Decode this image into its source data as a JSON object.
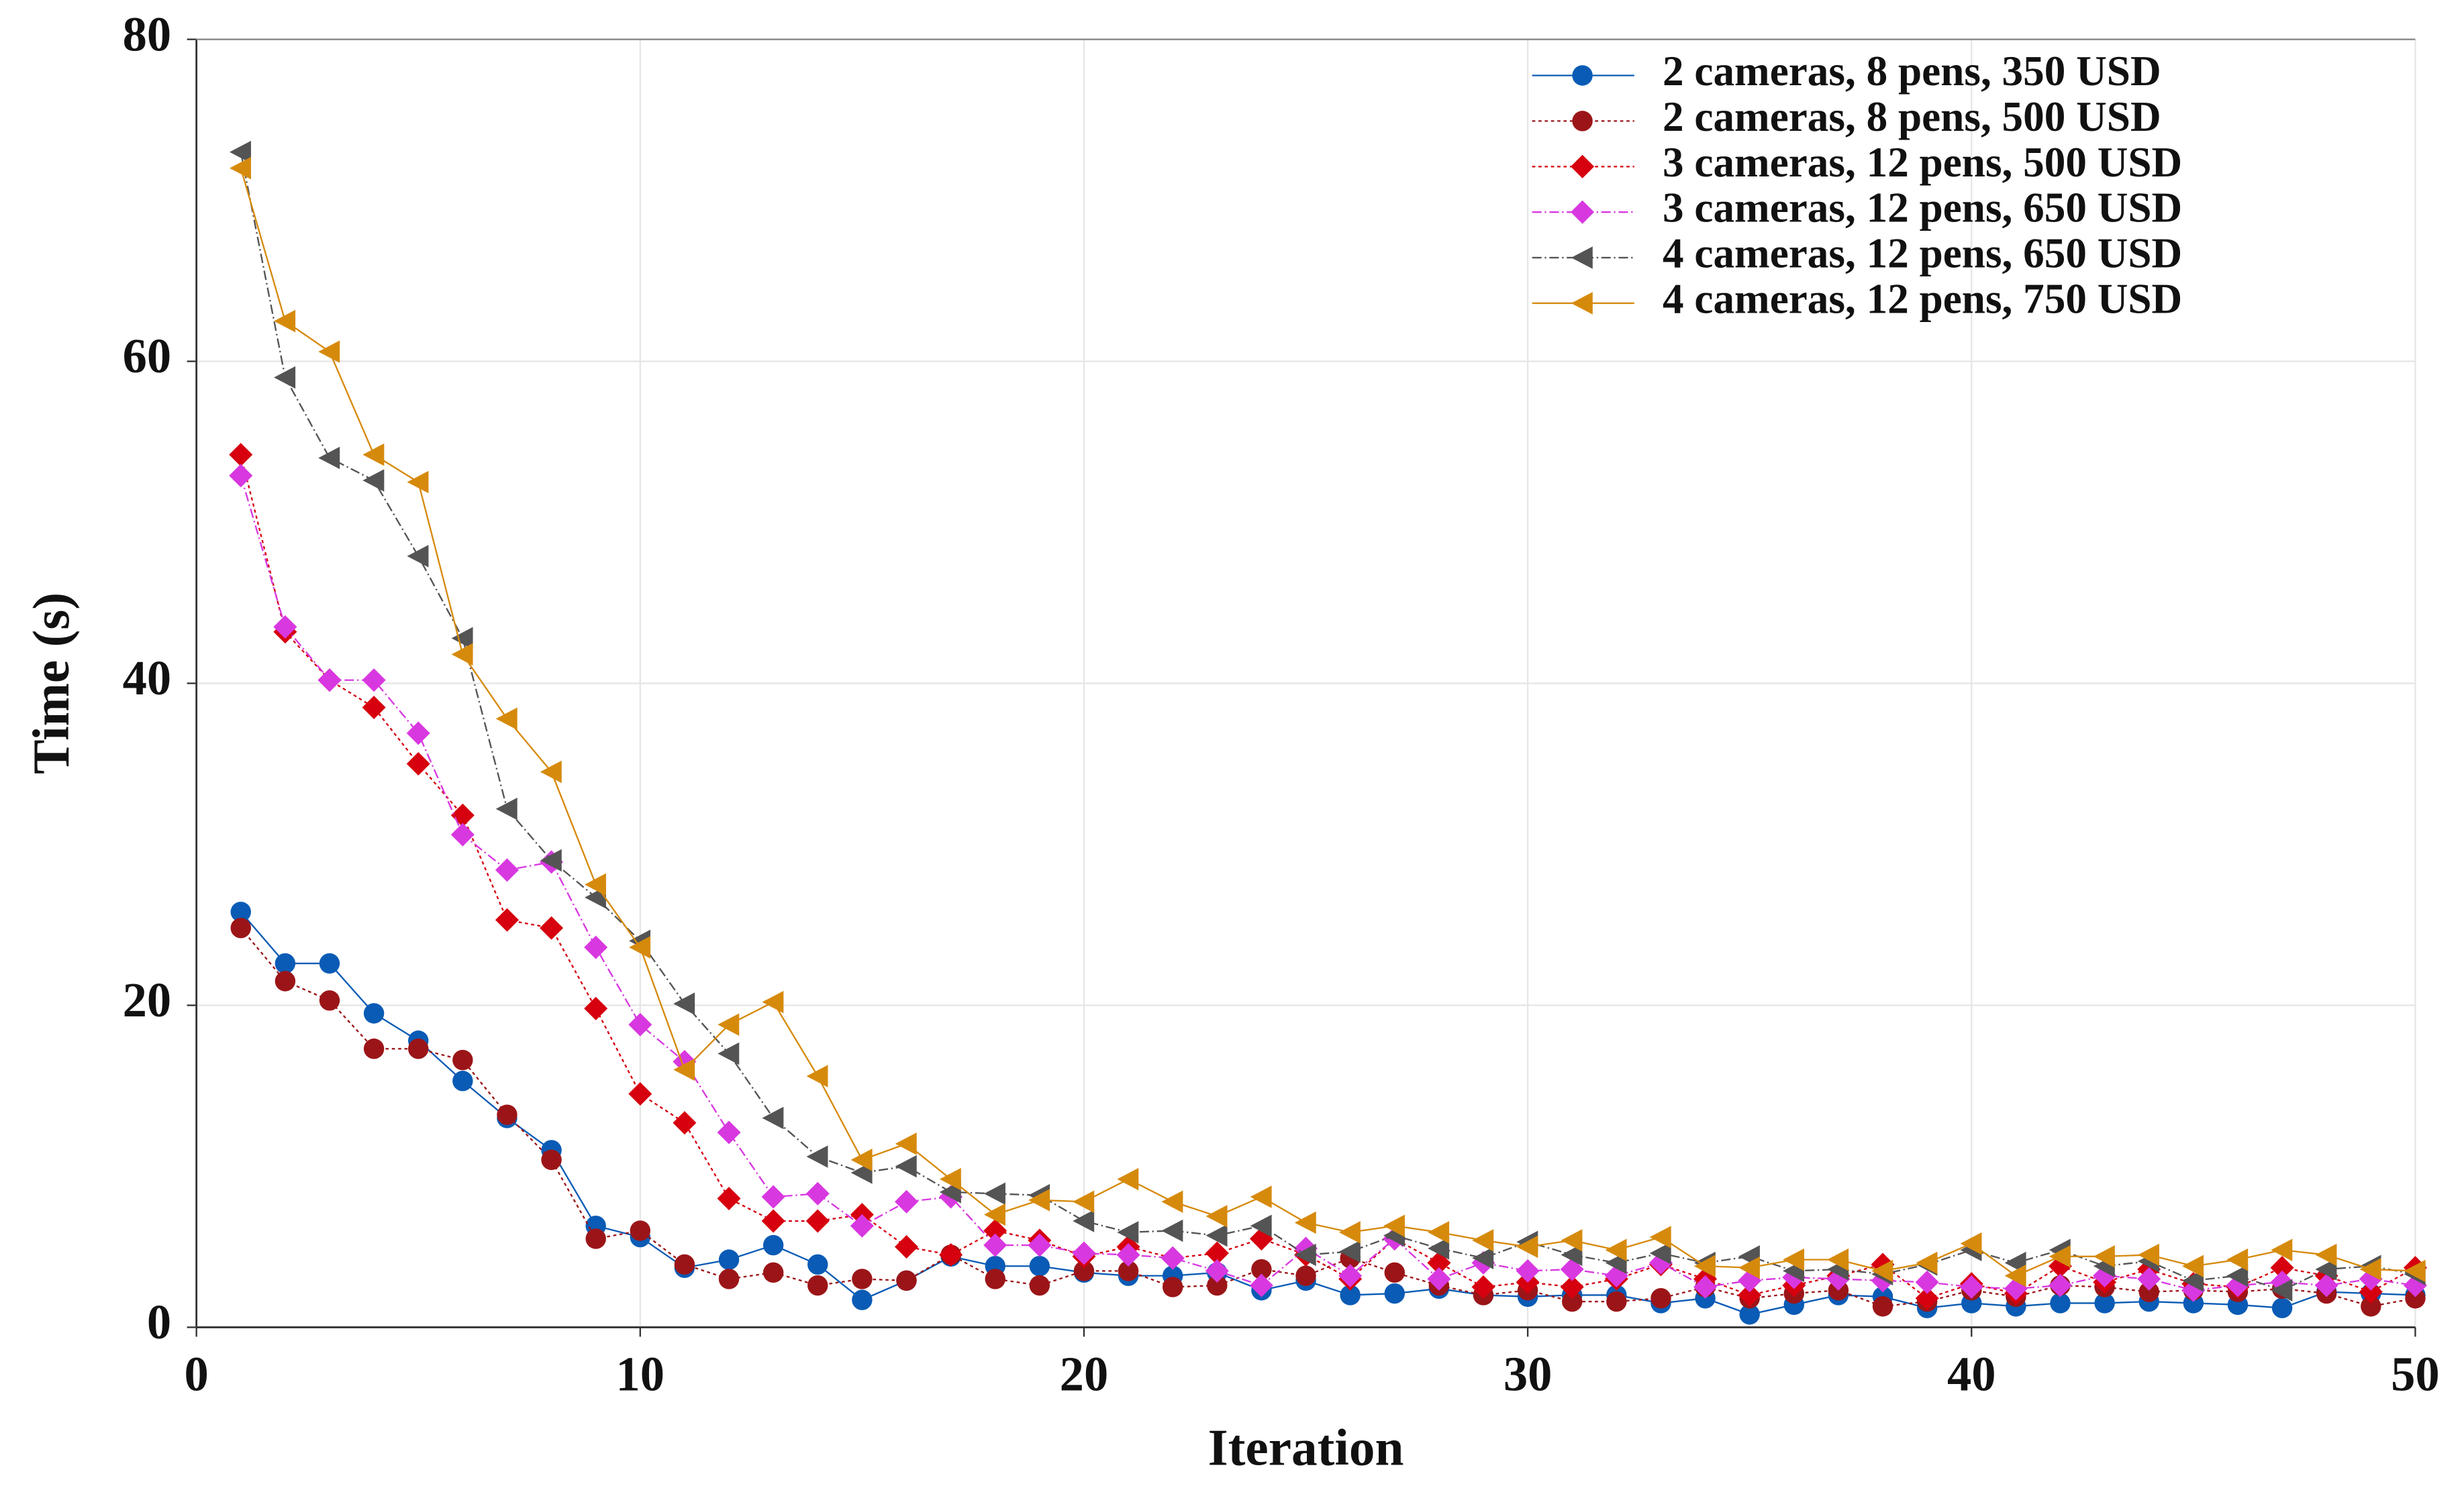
{
  "chart_data": {
    "type": "line",
    "xlabel": "Iteration",
    "ylabel": "Time (s)",
    "xlim": [
      0,
      50
    ],
    "xticks": [
      0,
      10,
      20,
      30,
      40,
      50
    ],
    "ylim": [
      0,
      80
    ],
    "yticks": [
      0,
      20,
      40,
      60,
      80
    ],
    "grid": true,
    "legend": "upper right",
    "x": [
      1,
      2,
      3,
      4,
      5,
      6,
      7,
      8,
      9,
      10,
      11,
      12,
      13,
      14,
      15,
      16,
      17,
      18,
      19,
      20,
      21,
      22,
      23,
      24,
      25,
      26,
      27,
      28,
      29,
      30,
      31,
      32,
      33,
      34,
      35,
      36,
      37,
      38,
      39,
      40,
      41,
      42,
      43,
      44,
      45,
      46,
      47,
      48,
      49,
      50
    ],
    "series": [
      {
        "name": "2 cameras, 8 pens, 350 USD",
        "color": "#0a5bb5",
        "marker": "circle",
        "linestyle": "solid",
        "values": [
          25.8,
          22.6,
          22.6,
          19.5,
          17.8,
          15.3,
          13,
          11,
          6.3,
          5.6,
          3.7,
          4.2,
          5.1,
          3.9,
          1.7,
          2.9,
          4.4,
          3.8,
          3.8,
          3.4,
          3.2,
          3.2,
          3.4,
          2.3,
          2.9,
          2.0,
          2.1,
          2.4,
          2.0,
          1.9,
          2.0,
          2.0,
          1.5,
          1.8,
          0.8,
          1.4,
          2.0,
          1.9,
          1.2,
          1.5,
          1.3,
          1.5,
          1.5,
          1.6,
          1.5,
          1.4,
          1.2,
          2.2,
          2.1,
          2.0
        ]
      },
      {
        "name": "2 cameras, 8 pens, 500 USD",
        "color": "#9b1518",
        "marker": "circle",
        "linestyle": "dotted",
        "values": [
          24.8,
          21.5,
          20.3,
          17.3,
          17.3,
          16.6,
          13.2,
          10.4,
          5.5,
          6.0,
          3.9,
          3.0,
          3.4,
          2.6,
          3.0,
          2.9,
          4.5,
          3.0,
          2.6,
          3.5,
          3.5,
          2.5,
          2.6,
          3.6,
          3.2,
          4.3,
          3.4,
          2.6,
          2.0,
          2.3,
          1.6,
          1.6,
          1.8,
          2.5,
          1.8,
          2.1,
          2.3,
          1.3,
          1.6,
          2.3,
          1.9,
          2.6,
          2.5,
          2.2,
          2.3,
          2.2,
          2.4,
          2.1,
          1.3,
          1.8
        ]
      },
      {
        "name": "3 cameras, 12 pens, 500 USD",
        "color": "#d6000f",
        "marker": "diamond",
        "linestyle": "dotted",
        "values": [
          54.2,
          43.2,
          40.2,
          38.5,
          35.0,
          31.8,
          25.3,
          24.8,
          19.8,
          14.5,
          12.7,
          8.0,
          6.6,
          6.6,
          7.0,
          5.0,
          4.5,
          6.0,
          5.4,
          4.4,
          5.0,
          4.3,
          4.6,
          5.5,
          4.5,
          3.0,
          5.5,
          4.0,
          2.5,
          2.8,
          2.5,
          3.0,
          3.9,
          3.0,
          2.0,
          2.6,
          3.2,
          3.9,
          1.8,
          2.7,
          2.1,
          3.8,
          2.8,
          3.6,
          2.7,
          2.5,
          3.7,
          3.2,
          2.2,
          3.7
        ]
      },
      {
        "name": "3 cameras, 12 pens, 650 USD",
        "color": "#d838e0",
        "marker": "diamond",
        "linestyle": "dashdot",
        "values": [
          52.9,
          43.5,
          40.2,
          40.2,
          36.9,
          30.6,
          28.4,
          28.9,
          23.6,
          18.8,
          16.5,
          12.1,
          8.1,
          8.3,
          6.3,
          7.8,
          8.1,
          5.1,
          5.1,
          4.6,
          4.5,
          4.3,
          3.5,
          2.6,
          4.9,
          3.2,
          5.5,
          3.0,
          4.0,
          3.5,
          3.6,
          3.2,
          4.0,
          2.5,
          2.9,
          3.1,
          3.0,
          2.9,
          2.8,
          2.5,
          2.4,
          2.6,
          3.2,
          3.0,
          2.3,
          2.6,
          2.8,
          2.6,
          3.0,
          2.6
        ]
      },
      {
        "name": "4 cameras, 12 pens, 650 USD",
        "color": "#545454",
        "marker": "triangle-left",
        "linestyle": "dashdot",
        "values": [
          73.0,
          59.0,
          54.0,
          52.6,
          47.9,
          42.8,
          32.2,
          29.0,
          26.7,
          24.0,
          20.1,
          17.0,
          13.0,
          10.6,
          9.6,
          10.0,
          8.4,
          8.3,
          8.2,
          6.6,
          5.9,
          6.0,
          5.7,
          6.3,
          4.5,
          4.7,
          5.7,
          4.9,
          4.3,
          5.3,
          4.5,
          4.0,
          4.6,
          4.0,
          4.4,
          3.5,
          3.6,
          3.3,
          3.9,
          4.8,
          4.0,
          4.8,
          3.8,
          4.1,
          2.9,
          3.2,
          2.3,
          3.6,
          3.8,
          3.3
        ]
      },
      {
        "name": "4 cameras, 12 pens, 750 USD",
        "color": "#d68a0c",
        "marker": "triangle-left",
        "linestyle": "solid",
        "values": [
          72.0,
          62.5,
          60.6,
          54.2,
          52.5,
          41.8,
          37.8,
          34.5,
          27.5,
          23.6,
          16.0,
          18.8,
          20.2,
          15.6,
          10.4,
          11.4,
          9.2,
          7.0,
          7.9,
          7.8,
          9.2,
          7.8,
          6.9,
          8.1,
          6.5,
          5.9,
          6.3,
          5.9,
          5.4,
          5.0,
          5.4,
          4.8,
          5.6,
          3.8,
          3.7,
          4.2,
          4.2,
          3.5,
          4.0,
          5.2,
          3.2,
          4.4,
          4.4,
          4.5,
          3.8,
          4.2,
          4.8,
          4.5,
          3.6,
          3.5
        ]
      }
    ]
  }
}
